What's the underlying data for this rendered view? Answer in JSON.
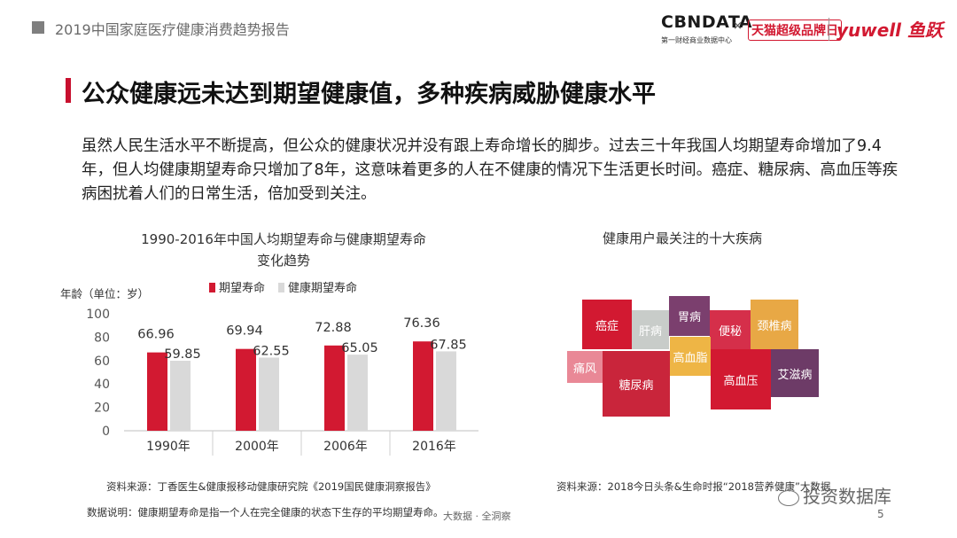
{
  "header": {
    "report_title": "2019中国家庭医疗健康消费趋势报告",
    "logo_cbn": "CBNDATA",
    "logo_cbn_sub": "第一财经商业数据中心",
    "logo_x": "×",
    "logo_tmall": "天猫超级品牌日",
    "logo_yuwell": "yuwell 鱼跃"
  },
  "title": "公众健康远未达到期望健康值，多种疾病威胁健康水平",
  "intro": "虽然人民生活水平不断提高，但公众的健康状况并没有跟上寿命增长的脚步。过去三十年我国人均期望寿命增加了9.4年，但人均健康期望寿命只增加了8年，这意味着更多的人在不健康的情况下生活更长时间。癌症、糖尿病、高血压等疾病困扰着人们的日常生活，倍加受到关注。",
  "chart_data": {
    "type": "bar",
    "title": "1990-2016年中国人均期望寿命与健康期望寿命",
    "subtitle": "变化趋势",
    "ylabel": "年龄（单位：岁）",
    "xlabel": "",
    "categories": [
      "1990年",
      "2000年",
      "2006年",
      "2016年"
    ],
    "series": [
      {
        "name": "期望寿命",
        "values": [
          66.96,
          69.94,
          72.88,
          76.36
        ],
        "color": "#d21931"
      },
      {
        "name": "健康期望寿命",
        "values": [
          59.85,
          62.55,
          65.05,
          67.85
        ],
        "color": "#d9d9d9"
      }
    ],
    "yticks": [
      0,
      20,
      40,
      60,
      80,
      100
    ],
    "ylim": [
      0,
      100
    ],
    "grid": false,
    "legend": "top"
  },
  "diseases": {
    "title": "健康用户最关注的十大疾病",
    "items": [
      {
        "label": "癌症",
        "color": "#d21931"
      },
      {
        "label": "肝病",
        "color": "#c8ccc9"
      },
      {
        "label": "胃病",
        "color": "#7b3f6e"
      },
      {
        "label": "便秘",
        "color": "#d52f4a"
      },
      {
        "label": "颈椎病",
        "color": "#e8a845"
      },
      {
        "label": "痛风",
        "color": "#e98896"
      },
      {
        "label": "糖尿病",
        "color": "#c9253b"
      },
      {
        "label": "高血脂",
        "color": "#eeb545"
      },
      {
        "label": "高血压",
        "color": "#d21931"
      },
      {
        "label": "艾滋病",
        "color": "#6d3b67"
      }
    ]
  },
  "sources": {
    "left": "资料来源：丁香医生&健康报移动健康研究院《2019国民健康洞察报告》",
    "note": "数据说明：健康期望寿命是指一个人在完全健康的状态下生存的平均期望寿命。",
    "right": "资料来源：2018今日头条&生命时报“2018营养健康”大数据"
  },
  "footer": {
    "mid": "大数据 · 全洞察",
    "page": "5",
    "stamp": "投资数据库"
  }
}
